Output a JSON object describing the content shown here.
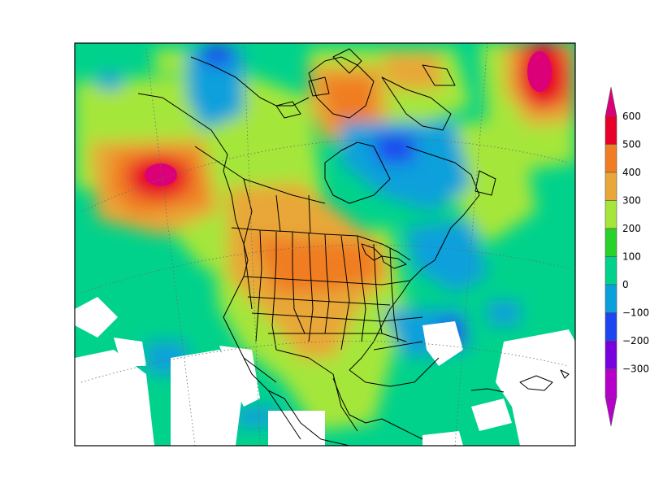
{
  "colorbar": {
    "levels": [
      {
        "label": "600",
        "color": "#e8002a"
      },
      {
        "label": "500",
        "color": "#f07d24"
      },
      {
        "label": "400",
        "color": "#e8a738"
      },
      {
        "label": "300",
        "color": "#a5e63a"
      },
      {
        "label": "200",
        "color": "#28d22a"
      },
      {
        "label": "100",
        "color": "#00d28c"
      },
      {
        "label": "0",
        "color": "#0aa0dc"
      },
      {
        "label": "−100",
        "color": "#1e46f0"
      },
      {
        "label": "−200",
        "color": "#7800dc"
      },
      {
        "label": "−300",
        "color": "#b400c8"
      }
    ],
    "top_arrow_color": "#dc0078",
    "bottom_arrow_color": "#b400c8"
  },
  "map": {
    "background_color": "#00d28c",
    "missing_color": "#ffffff"
  }
}
